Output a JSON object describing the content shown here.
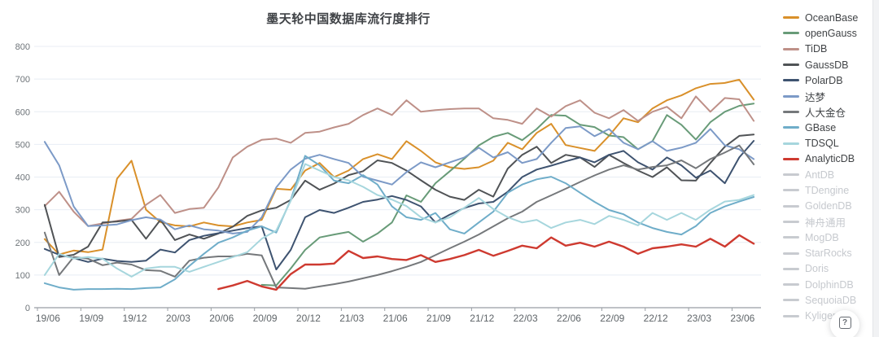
{
  "title": "墨天轮中国数据库流行度排行",
  "help_button": {
    "icon": "?"
  },
  "chart_data": {
    "type": "line",
    "title": "墨天轮中国数据库流行度排行",
    "xlabel": "",
    "ylabel": "",
    "ylim": [
      0,
      800
    ],
    "y_tick_step": 100,
    "y_tick_labels": [
      "0",
      "100",
      "200",
      "300",
      "400",
      "500",
      "600",
      "700",
      "800"
    ],
    "grid": true,
    "legend_position": "right",
    "x_tick_every": 3,
    "x_tick_labels": [
      "19/06",
      "19/09",
      "19/12",
      "20/03",
      "20/06",
      "20/09",
      "20/12",
      "21/03",
      "21/06",
      "21/09",
      "21/12",
      "22/03",
      "22/06",
      "22/09",
      "22/12",
      "23/03",
      "23/06"
    ],
    "x": [
      "19/06",
      "19/07",
      "19/08",
      "19/09",
      "19/10",
      "19/11",
      "19/12",
      "20/01",
      "20/02",
      "20/03",
      "20/04",
      "20/05",
      "20/06",
      "20/07",
      "20/08",
      "20/09",
      "20/10",
      "20/11",
      "20/12",
      "21/01",
      "21/02",
      "21/03",
      "21/04",
      "21/05",
      "21/06",
      "21/07",
      "21/08",
      "21/09",
      "21/10",
      "21/11",
      "21/12",
      "22/01",
      "22/02",
      "22/03",
      "22/04",
      "22/05",
      "22/06",
      "22/07",
      "22/08",
      "22/09",
      "22/10",
      "22/11",
      "22/12",
      "23/01",
      "23/02",
      "23/03",
      "23/04",
      "23/05",
      "23/06",
      "23/07"
    ],
    "series": [
      {
        "name": "OceanBase",
        "color": "#d9902a",
        "active": true,
        "values": [
          210,
          163,
          175,
          170,
          178,
          395,
          450,
          300,
          262,
          252,
          249,
          261,
          252,
          249,
          261,
          269,
          364,
          361,
          420,
          443,
          400,
          420,
          455,
          470,
          455,
          510,
          480,
          445,
          430,
          425,
          430,
          450,
          505,
          485,
          535,
          563,
          498,
          489,
          480,
          526,
          580,
          568,
          610,
          635,
          650,
          672,
          685,
          688,
          698,
          637
        ]
      },
      {
        "name": "openGauss",
        "color": "#689b78",
        "active": true,
        "values": [
          null,
          null,
          null,
          null,
          null,
          null,
          null,
          null,
          null,
          null,
          null,
          null,
          null,
          null,
          null,
          70,
          68,
          120,
          177,
          215,
          224,
          232,
          202,
          227,
          261,
          344,
          324,
          381,
          418,
          456,
          497,
          523,
          535,
          513,
          547,
          590,
          588,
          560,
          553,
          527,
          522,
          485,
          510,
          590,
          560,
          515,
          568,
          600,
          618,
          625
        ]
      },
      {
        "name": "TiDB",
        "color": "#be9088",
        "active": true,
        "values": [
          311,
          355,
          294,
          250,
          258,
          266,
          272,
          315,
          345,
          290,
          302,
          306,
          368,
          460,
          493,
          514,
          518,
          505,
          535,
          539,
          552,
          563,
          590,
          610,
          590,
          635,
          600,
          605,
          608,
          610,
          610,
          580,
          575,
          563,
          610,
          585,
          617,
          635,
          597,
          580,
          605,
          572,
          600,
          615,
          580,
          647,
          600,
          642,
          638,
          572
        ]
      },
      {
        "name": "GaussDB",
        "color": "#505356",
        "active": true,
        "values": [
          315,
          155,
          162,
          187,
          261,
          264,
          269,
          211,
          269,
          207,
          224,
          211,
          227,
          248,
          281,
          298,
          306,
          330,
          389,
          361,
          380,
          406,
          418,
          451,
          443,
          420,
          390,
          361,
          340,
          330,
          361,
          340,
          426,
          468,
          493,
          443,
          468,
          460,
          431,
          468,
          443,
          420,
          400,
          430,
          390,
          389,
          443,
          493,
          526,
          530
        ]
      },
      {
        "name": "PolarDB",
        "color": "#3e5370",
        "active": true,
        "values": [
          180,
          162,
          152,
          140,
          150,
          143,
          140,
          144,
          178,
          169,
          207,
          220,
          228,
          236,
          244,
          249,
          117,
          177,
          277,
          299,
          290,
          306,
          324,
          331,
          342,
          330,
          310,
          261,
          285,
          305,
          319,
          324,
          355,
          400,
          423,
          435,
          448,
          460,
          445,
          468,
          480,
          445,
          423,
          460,
          436,
          398,
          420,
          381,
          460,
          511
        ]
      },
      {
        "name": "达梦",
        "color": "#7c9ac7",
        "active": true,
        "values": [
          508,
          436,
          310,
          250,
          252,
          255,
          268,
          277,
          270,
          240,
          252,
          240,
          236,
          227,
          232,
          277,
          368,
          423,
          456,
          468,
          455,
          443,
          401,
          389,
          377,
          415,
          445,
          430,
          445,
          460,
          490,
          460,
          476,
          443,
          455,
          505,
          550,
          555,
          525,
          547,
          505,
          485,
          510,
          480,
          490,
          505,
          547,
          497,
          485,
          455
        ]
      },
      {
        "name": "人大金仓",
        "color": "#75787b",
        "active": true,
        "values": [
          230,
          100,
          155,
          150,
          130,
          138,
          132,
          115,
          113,
          95,
          144,
          153,
          157,
          157,
          165,
          160,
          62,
          60,
          58,
          65,
          72,
          80,
          90,
          100,
          112,
          125,
          140,
          161,
          182,
          202,
          224,
          249,
          274,
          294,
          324,
          344,
          364,
          385,
          405,
          423,
          436,
          423,
          431,
          436,
          451,
          427,
          455,
          475,
          497,
          439
        ]
      },
      {
        "name": "GBase",
        "color": "#6fadc9",
        "active": true,
        "values": [
          75,
          62,
          55,
          57,
          57,
          58,
          57,
          60,
          62,
          87,
          128,
          165,
          199,
          215,
          236,
          249,
          230,
          330,
          465,
          436,
          389,
          381,
          406,
          377,
          310,
          277,
          269,
          290,
          240,
          227,
          261,
          294,
          352,
          377,
          393,
          401,
          381,
          352,
          324,
          299,
          286,
          261,
          244,
          232,
          224,
          250,
          290,
          310,
          325,
          339
        ]
      },
      {
        "name": "TDSQL",
        "color": "#a6d6dd",
        "active": true,
        "values": [
          100,
          165,
          150,
          155,
          150,
          120,
          95,
          120,
          125,
          125,
          110,
          125,
          140,
          155,
          170,
          211,
          236,
          327,
          440,
          420,
          400,
          390,
          370,
          345,
          331,
          311,
          277,
          261,
          277,
          306,
          336,
          302,
          277,
          261,
          269,
          244,
          261,
          269,
          256,
          281,
          269,
          252,
          290,
          269,
          290,
          269,
          300,
          325,
          330,
          345
        ]
      },
      {
        "name": "AnalyticDB",
        "color": "#ce3a30",
        "active": true,
        "values": [
          null,
          null,
          null,
          null,
          null,
          null,
          null,
          null,
          null,
          null,
          null,
          null,
          57,
          68,
          82,
          65,
          55,
          103,
          132,
          132,
          135,
          174,
          152,
          157,
          149,
          146,
          161,
          140,
          149,
          161,
          177,
          159,
          174,
          190,
          182,
          215,
          190,
          199,
          187,
          202,
          187,
          165,
          182,
          187,
          194,
          187,
          211,
          187,
          222,
          196
        ]
      },
      {
        "name": "AntDB",
        "color": "#c8cbd0",
        "active": false,
        "values": []
      },
      {
        "name": "TDengine",
        "color": "#c8cbd0",
        "active": false,
        "values": []
      },
      {
        "name": "GoldenDB",
        "color": "#c8cbd0",
        "active": false,
        "values": []
      },
      {
        "name": "神舟通用",
        "color": "#c8cbd0",
        "active": false,
        "values": []
      },
      {
        "name": "MogDB",
        "color": "#c8cbd0",
        "active": false,
        "values": []
      },
      {
        "name": "StarRocks",
        "color": "#c8cbd0",
        "active": false,
        "values": []
      },
      {
        "name": "Doris",
        "color": "#c8cbd0",
        "active": false,
        "values": []
      },
      {
        "name": "DolphinDB",
        "color": "#c8cbd0",
        "active": false,
        "values": []
      },
      {
        "name": "SequoiaDB",
        "color": "#c8cbd0",
        "active": false,
        "values": []
      },
      {
        "name": "Kyligence",
        "color": "#c8cbd0",
        "active": false,
        "values": []
      }
    ]
  }
}
